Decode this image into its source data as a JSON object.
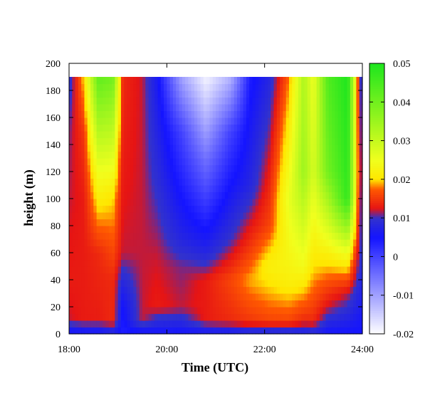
{
  "chart_data": {
    "type": "heatmap",
    "title": "",
    "xlabel": "Time (UTC)",
    "ylabel": "height (m)",
    "x_range_hours": [
      18,
      24
    ],
    "xlim": [
      18,
      24
    ],
    "ylim": [
      0,
      200
    ],
    "data_height_range_m": [
      0,
      190
    ],
    "x_ticks": [
      {
        "value": 18,
        "label": "18:00"
      },
      {
        "value": 20,
        "label": "20:00"
      },
      {
        "value": 22,
        "label": "22:00"
      },
      {
        "value": 24,
        "label": "24:00"
      }
    ],
    "y_ticks": [
      {
        "value": 0,
        "label": "0"
      },
      {
        "value": 20,
        "label": "20"
      },
      {
        "value": 40,
        "label": "40"
      },
      {
        "value": 60,
        "label": "60"
      },
      {
        "value": 80,
        "label": "80"
      },
      {
        "value": 100,
        "label": "100"
      },
      {
        "value": 120,
        "label": "120"
      },
      {
        "value": 140,
        "label": "140"
      },
      {
        "value": 160,
        "label": "160"
      },
      {
        "value": 180,
        "label": "180"
      },
      {
        "value": 200,
        "label": "200"
      }
    ],
    "colorbar": {
      "range": [
        -0.02,
        0.05
      ],
      "ticks": [
        {
          "value": -0.02,
          "label": "-0.02"
        },
        {
          "value": -0.01,
          "label": "-0.01"
        },
        {
          "value": 0,
          "label": "0"
        },
        {
          "value": 0.01,
          "label": "0.01"
        },
        {
          "value": 0.02,
          "label": "0.02"
        },
        {
          "value": 0.03,
          "label": "0.03"
        },
        {
          "value": 0.04,
          "label": "0.04"
        },
        {
          "value": 0.05,
          "label": "0.05"
        }
      ],
      "palette": [
        {
          "value": -0.02,
          "color": "#ffffff"
        },
        {
          "value": 0.005,
          "color": "#1414ff"
        },
        {
          "value": 0.01,
          "color": "#3232cc"
        },
        {
          "value": 0.0125,
          "color": "#e61414"
        },
        {
          "value": 0.0175,
          "color": "#ff5a00"
        },
        {
          "value": 0.02,
          "color": "#ffe600"
        },
        {
          "value": 0.025,
          "color": "#f0ff1e"
        },
        {
          "value": 0.05,
          "color": "#1ee61e"
        }
      ]
    },
    "description_profiles": [
      {
        "time_h": 18.0,
        "profile": [
          [
            0,
            0.004
          ],
          [
            10,
            0.012
          ],
          [
            40,
            0.013
          ],
          [
            100,
            0.012
          ],
          [
            150,
            0.011
          ],
          [
            190,
            0.008
          ]
        ]
      },
      {
        "time_h": 18.3,
        "profile": [
          [
            0,
            0.004
          ],
          [
            10,
            0.013
          ],
          [
            100,
            0.013
          ],
          [
            150,
            0.015
          ],
          [
            190,
            0.02
          ]
        ]
      },
      {
        "time_h": 18.6,
        "profile": [
          [
            0,
            0.004
          ],
          [
            10,
            0.013
          ],
          [
            60,
            0.014
          ],
          [
            120,
            0.025
          ],
          [
            190,
            0.042
          ]
        ]
      },
      {
        "time_h": 18.9,
        "profile": [
          [
            0,
            0.006
          ],
          [
            10,
            0.014
          ],
          [
            40,
            0.014
          ],
          [
            100,
            0.02
          ],
          [
            190,
            0.04
          ]
        ]
      },
      {
        "time_h": 19.1,
        "profile": [
          [
            0,
            0.004
          ],
          [
            20,
            0.005
          ],
          [
            60,
            0.012
          ],
          [
            190,
            0.014
          ]
        ]
      },
      {
        "time_h": 19.5,
        "profile": [
          [
            0,
            0.004
          ],
          [
            10,
            0.012
          ],
          [
            80,
            0.012
          ],
          [
            190,
            0.012
          ]
        ]
      },
      {
        "time_h": 19.8,
        "profile": [
          [
            0,
            0.005
          ],
          [
            20,
            0.013
          ],
          [
            60,
            0.012
          ],
          [
            120,
            0.009
          ],
          [
            190,
            0.006
          ]
        ]
      },
      {
        "time_h": 20.3,
        "profile": [
          [
            0,
            0.005
          ],
          [
            20,
            0.012
          ],
          [
            50,
            0.011
          ],
          [
            70,
            0.008
          ],
          [
            150,
            0.0
          ],
          [
            190,
            -0.01
          ]
        ]
      },
      {
        "time_h": 20.8,
        "profile": [
          [
            0,
            0.005
          ],
          [
            10,
            0.013
          ],
          [
            40,
            0.013
          ],
          [
            60,
            0.008
          ],
          [
            130,
            -0.005
          ],
          [
            190,
            -0.019
          ]
        ]
      },
      {
        "time_h": 21.3,
        "profile": [
          [
            0,
            0.005
          ],
          [
            10,
            0.014
          ],
          [
            40,
            0.016
          ],
          [
            70,
            0.01
          ],
          [
            150,
            0.0
          ],
          [
            190,
            -0.012
          ]
        ]
      },
      {
        "time_h": 21.7,
        "profile": [
          [
            0,
            0.006
          ],
          [
            10,
            0.015
          ],
          [
            40,
            0.019
          ],
          [
            70,
            0.014
          ],
          [
            110,
            0.008
          ],
          [
            190,
            0.004
          ]
        ]
      },
      {
        "time_h": 22.1,
        "profile": [
          [
            0,
            0.006
          ],
          [
            10,
            0.016
          ],
          [
            50,
            0.022
          ],
          [
            80,
            0.016
          ],
          [
            190,
            0.008
          ]
        ]
      },
      {
        "time_h": 22.5,
        "profile": [
          [
            0,
            0.006
          ],
          [
            10,
            0.016
          ],
          [
            40,
            0.022
          ],
          [
            100,
            0.026
          ],
          [
            190,
            0.018
          ]
        ]
      },
      {
        "time_h": 22.8,
        "profile": [
          [
            0,
            0.006
          ],
          [
            10,
            0.014
          ],
          [
            50,
            0.024
          ],
          [
            120,
            0.035
          ],
          [
            190,
            0.033
          ]
        ]
      },
      {
        "time_h": 23.0,
        "profile": [
          [
            0,
            0.007
          ],
          [
            10,
            0.014
          ],
          [
            50,
            0.02
          ],
          [
            120,
            0.028
          ],
          [
            190,
            0.025
          ]
        ]
      },
      {
        "time_h": 23.3,
        "profile": [
          [
            0,
            0.005
          ],
          [
            20,
            0.012
          ],
          [
            60,
            0.022
          ],
          [
            120,
            0.04
          ],
          [
            190,
            0.044
          ]
        ]
      },
      {
        "time_h": 23.7,
        "profile": [
          [
            0,
            0.005
          ],
          [
            30,
            0.012
          ],
          [
            60,
            0.025
          ],
          [
            100,
            0.048
          ],
          [
            190,
            0.05
          ]
        ]
      },
      {
        "time_h": 23.95,
        "profile": [
          [
            0,
            0.005
          ],
          [
            60,
            0.01
          ],
          [
            120,
            0.012
          ],
          [
            190,
            0.01
          ]
        ]
      }
    ]
  }
}
